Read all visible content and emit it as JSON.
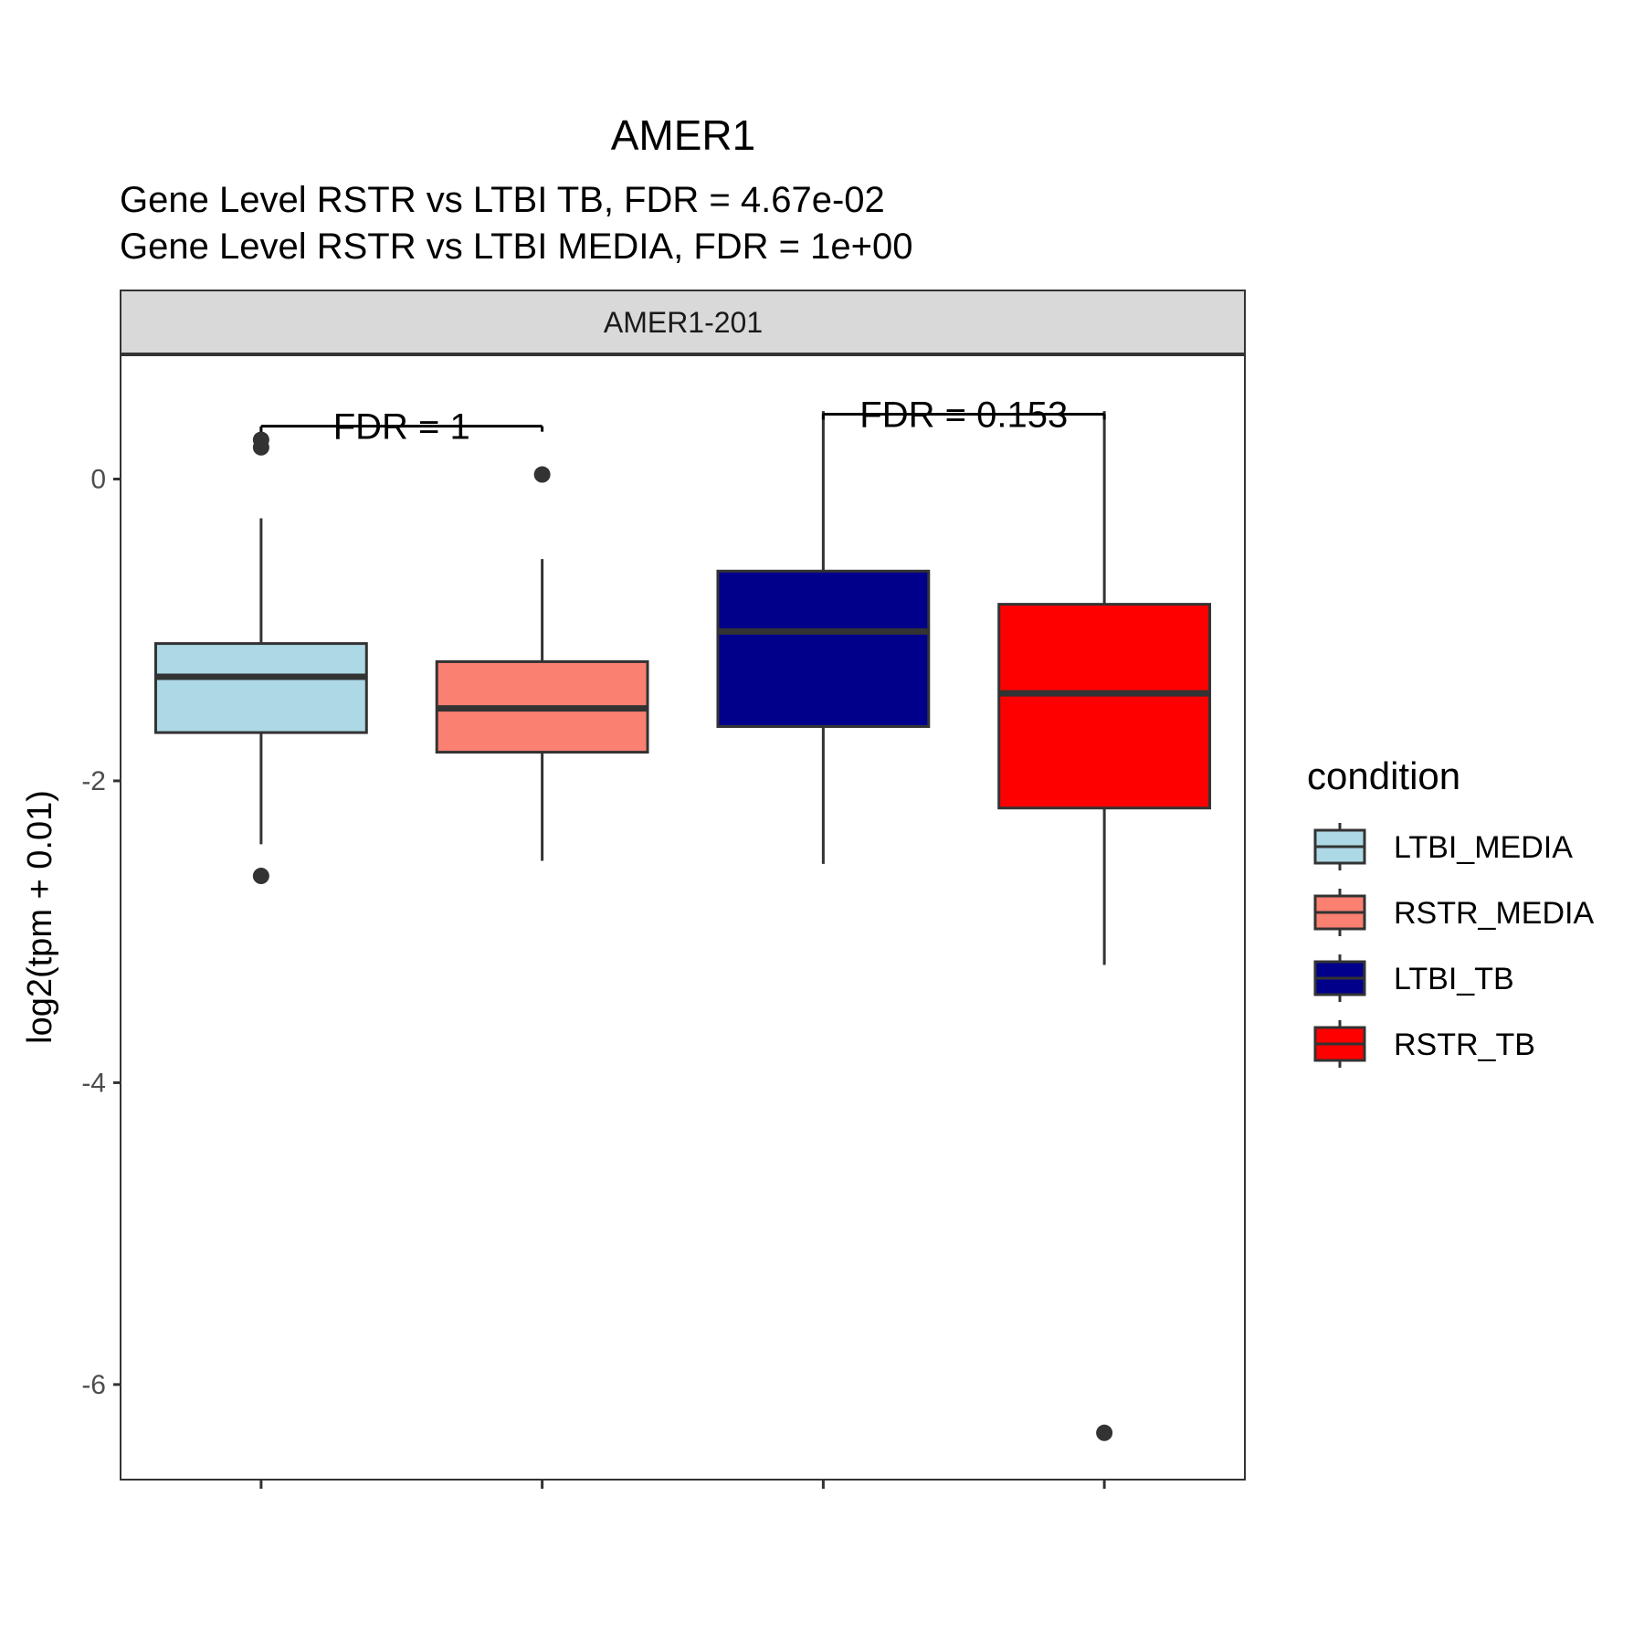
{
  "chart_data": {
    "type": "boxplot",
    "title": "AMER1",
    "subtitle_lines": [
      "Gene Level RSTR vs LTBI TB, FDR =  4.67e-02",
      "Gene Level RSTR vs LTBI MEDIA, FDR =  1e+00"
    ],
    "facet_label": "AMER1-201",
    "xlabel": "",
    "ylabel": "log2(tpm + 0.01)",
    "ylim": [
      -6.63,
      0.82
    ],
    "yticks": [
      0,
      -2,
      -4,
      -6
    ],
    "ytick_labels": [
      "0",
      "-2",
      "-4",
      "-6"
    ],
    "grid": false,
    "categories": [
      "LTBI_MEDIA",
      "RSTR_MEDIA",
      "LTBI_TB",
      "RSTR_TB"
    ],
    "series": [
      {
        "name": "LTBI_MEDIA",
        "color": "#ADD8E6",
        "whisker_low": -2.42,
        "q1": -1.68,
        "median": -1.31,
        "q3": -1.09,
        "whisker_high": -0.26,
        "outliers": [
          0.26,
          0.21,
          -2.63
        ]
      },
      {
        "name": "RSTR_MEDIA",
        "color": "#FA8072",
        "whisker_low": -2.53,
        "q1": -1.81,
        "median": -1.52,
        "q3": -1.21,
        "whisker_high": -0.53,
        "outliers": [
          0.03
        ]
      },
      {
        "name": "LTBI_TB",
        "color": "#00008B",
        "whisker_low": -2.55,
        "q1": -1.64,
        "median": -1.01,
        "q3": -0.61,
        "whisker_high": 0.45,
        "outliers": []
      },
      {
        "name": "RSTR_TB",
        "color": "#FF0000",
        "whisker_low": -3.22,
        "q1": -2.18,
        "median": -1.42,
        "q3": -0.83,
        "whisker_high": 0.45,
        "outliers": [
          -6.32
        ]
      }
    ],
    "annotations": [
      {
        "label": "FDR =  1",
        "from": "LTBI_MEDIA",
        "to": "RSTR_MEDIA",
        "y": 0.35
      },
      {
        "label": "FDR =  0.153",
        "from": "LTBI_TB",
        "to": "RSTR_TB",
        "y": 0.43
      }
    ],
    "legend": {
      "title": "condition",
      "position": "right",
      "entries": [
        "LTBI_MEDIA",
        "RSTR_MEDIA",
        "LTBI_TB",
        "RSTR_TB"
      ]
    }
  }
}
